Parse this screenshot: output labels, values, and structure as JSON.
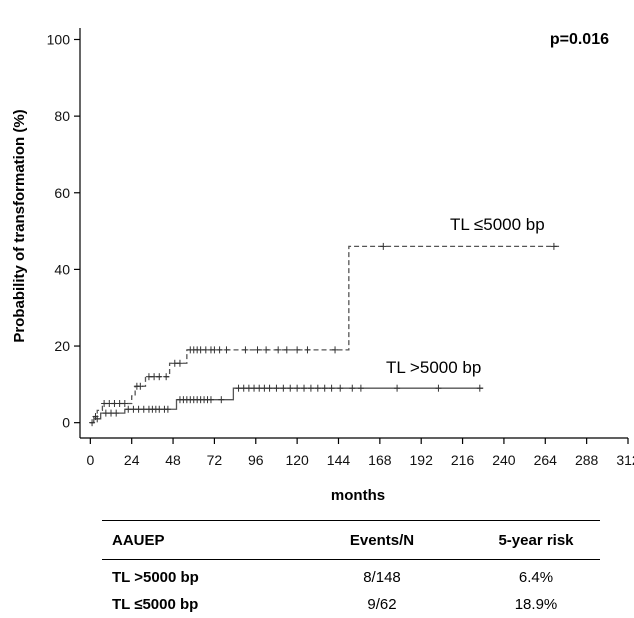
{
  "chart_data": {
    "type": "line",
    "title": "",
    "xlabel": "months",
    "ylabel": "Probability of transformation (%)",
    "xlim": [
      -6,
      312
    ],
    "ylim": [
      -4,
      103
    ],
    "xticks": [
      0,
      24,
      48,
      72,
      96,
      120,
      144,
      168,
      192,
      216,
      240,
      264,
      288,
      312
    ],
    "yticks": [
      0,
      20,
      40,
      60,
      80,
      100
    ],
    "grid": false,
    "annotation": "p=0.016",
    "series": [
      {
        "name": "TL ≤5000 bp",
        "style": "dashed",
        "color": "#555555",
        "steps": [
          [
            0,
            0
          ],
          [
            2,
            1.6
          ],
          [
            4,
            3.2
          ],
          [
            7,
            5
          ],
          [
            22,
            5
          ],
          [
            24,
            7
          ],
          [
            26,
            9.5
          ],
          [
            32,
            12
          ],
          [
            42,
            12
          ],
          [
            46,
            15.5
          ],
          [
            54,
            15.5
          ],
          [
            56,
            19
          ],
          [
            150,
            19
          ],
          [
            150,
            46
          ],
          [
            272,
            46
          ]
        ],
        "censored_x": [
          3,
          8,
          11,
          14,
          17,
          20,
          27,
          29,
          34,
          37,
          40,
          44,
          49,
          52,
          58,
          60,
          62,
          64,
          67,
          70,
          72,
          75,
          79,
          90,
          97,
          102,
          109,
          114,
          120,
          126,
          142,
          170,
          269
        ]
      },
      {
        "name": "TL >5000 bp",
        "style": "solid",
        "color": "#555555",
        "steps": [
          [
            0,
            0
          ],
          [
            2,
            1
          ],
          [
            6,
            2.5
          ],
          [
            18,
            2.5
          ],
          [
            20,
            3.5
          ],
          [
            47,
            3.5
          ],
          [
            50,
            6
          ],
          [
            81,
            6
          ],
          [
            83,
            9
          ],
          [
            228,
            9
          ]
        ],
        "censored_x": [
          1,
          4,
          9,
          12,
          15,
          22,
          25,
          28,
          31,
          34,
          36,
          38,
          40,
          43,
          45,
          52,
          54,
          56,
          58,
          60,
          62,
          64,
          66,
          68,
          70,
          76,
          86,
          89,
          92,
          95,
          98,
          101,
          104,
          108,
          112,
          116,
          120,
          124,
          128,
          132,
          136,
          140,
          145,
          152,
          157,
          178,
          202,
          226
        ]
      }
    ]
  },
  "labels": {
    "pvalue": "p=0.016",
    "series_short": "TL ≤5000 bp",
    "series_long": "TL >5000 bp"
  },
  "table": {
    "headers": [
      "AAUEP",
      "Events/N",
      "5-year risk"
    ],
    "rows": [
      [
        "TL >5000 bp",
        "8/148",
        "6.4%"
      ],
      [
        "TL ≤5000 bp",
        "9/62",
        "18.9%"
      ]
    ]
  }
}
